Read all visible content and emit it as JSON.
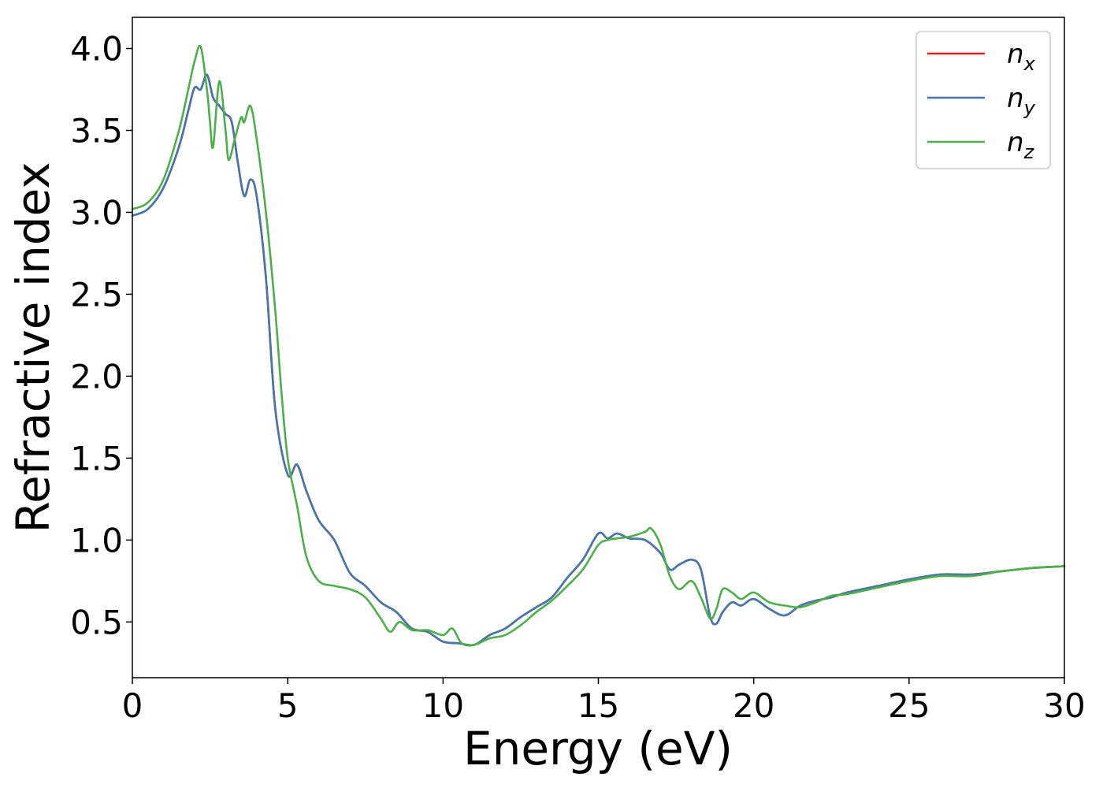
{
  "chart_data": {
    "type": "line",
    "title": "",
    "xlabel": "Energy (eV)",
    "ylabel": "Refractive index",
    "xlim": [
      0,
      30
    ],
    "ylim": [
      0.16,
      4.19
    ],
    "xticks": [
      0,
      5,
      10,
      15,
      20,
      25,
      30
    ],
    "yticks": [
      0.5,
      1.0,
      1.5,
      2.0,
      2.5,
      3.0,
      3.5,
      4.0
    ],
    "xtick_labels": [
      "0",
      "5",
      "10",
      "15",
      "20",
      "25",
      "30"
    ],
    "ytick_labels": [
      "0.5",
      "1.0",
      "1.5",
      "2.0",
      "2.5",
      "3.0",
      "3.5",
      "4.0"
    ],
    "grid": false,
    "legend_position": "top-right",
    "series": [
      {
        "name": "n_x",
        "legend_base": "n",
        "legend_sub": "x",
        "color": "#e41a1c",
        "x": [
          0,
          0.5,
          1.0,
          1.5,
          1.8,
          2.0,
          2.2,
          2.4,
          2.6,
          2.8,
          3.0,
          3.2,
          3.4,
          3.6,
          3.8,
          4.0,
          4.3,
          4.6,
          5.0,
          5.3,
          5.6,
          6.0,
          6.5,
          7.0,
          7.5,
          8.0,
          8.5,
          9.0,
          9.5,
          10.0,
          10.5,
          11.0,
          11.5,
          12.0,
          12.5,
          13.0,
          13.5,
          14.0,
          14.5,
          15.0,
          15.3,
          15.6,
          16.0,
          16.5,
          17.0,
          17.3,
          17.6,
          18.0,
          18.3,
          18.6,
          18.8,
          19.0,
          19.3,
          19.6,
          20.0,
          20.5,
          21.0,
          21.5,
          22.0,
          22.5,
          23.0,
          24.0,
          25.0,
          26.0,
          27.0,
          28.0,
          29.0,
          30.0
        ],
        "values": [
          2.98,
          3.02,
          3.15,
          3.4,
          3.62,
          3.76,
          3.75,
          3.84,
          3.7,
          3.65,
          3.6,
          3.55,
          3.3,
          3.1,
          3.2,
          3.1,
          2.6,
          1.8,
          1.4,
          1.46,
          1.3,
          1.12,
          1.0,
          0.8,
          0.72,
          0.62,
          0.56,
          0.46,
          0.44,
          0.38,
          0.37,
          0.36,
          0.42,
          0.46,
          0.53,
          0.59,
          0.65,
          0.77,
          0.88,
          1.04,
          1.01,
          1.04,
          1.01,
          1.0,
          0.92,
          0.82,
          0.85,
          0.88,
          0.82,
          0.53,
          0.49,
          0.56,
          0.62,
          0.6,
          0.64,
          0.58,
          0.54,
          0.6,
          0.63,
          0.65,
          0.68,
          0.72,
          0.76,
          0.79,
          0.79,
          0.81,
          0.83,
          0.84
        ]
      },
      {
        "name": "n_y",
        "legend_base": "n",
        "legend_sub": "y",
        "color": "#4477aa",
        "x": [
          0,
          0.5,
          1.0,
          1.5,
          1.8,
          2.0,
          2.2,
          2.4,
          2.6,
          2.8,
          3.0,
          3.2,
          3.4,
          3.6,
          3.8,
          4.0,
          4.3,
          4.6,
          5.0,
          5.3,
          5.6,
          6.0,
          6.5,
          7.0,
          7.5,
          8.0,
          8.5,
          9.0,
          9.5,
          10.0,
          10.5,
          11.0,
          11.5,
          12.0,
          12.5,
          13.0,
          13.5,
          14.0,
          14.5,
          15.0,
          15.3,
          15.6,
          16.0,
          16.5,
          17.0,
          17.3,
          17.6,
          18.0,
          18.3,
          18.6,
          18.8,
          19.0,
          19.3,
          19.6,
          20.0,
          20.5,
          21.0,
          21.5,
          22.0,
          22.5,
          23.0,
          24.0,
          25.0,
          26.0,
          27.0,
          28.0,
          29.0,
          30.0
        ],
        "values": [
          2.98,
          3.02,
          3.15,
          3.4,
          3.62,
          3.76,
          3.75,
          3.84,
          3.7,
          3.65,
          3.6,
          3.55,
          3.3,
          3.1,
          3.2,
          3.1,
          2.6,
          1.8,
          1.4,
          1.46,
          1.3,
          1.12,
          1.0,
          0.8,
          0.72,
          0.62,
          0.56,
          0.46,
          0.44,
          0.38,
          0.37,
          0.36,
          0.42,
          0.46,
          0.53,
          0.59,
          0.65,
          0.77,
          0.88,
          1.04,
          1.01,
          1.04,
          1.01,
          1.0,
          0.92,
          0.82,
          0.85,
          0.88,
          0.82,
          0.53,
          0.49,
          0.56,
          0.62,
          0.6,
          0.64,
          0.58,
          0.54,
          0.6,
          0.63,
          0.65,
          0.68,
          0.72,
          0.76,
          0.79,
          0.79,
          0.81,
          0.83,
          0.84
        ]
      },
      {
        "name": "n_z",
        "legend_base": "n",
        "legend_sub": "z",
        "color": "#4daf4a",
        "x": [
          0,
          0.5,
          1.0,
          1.5,
          1.8,
          2.0,
          2.2,
          2.4,
          2.5,
          2.6,
          2.8,
          3.0,
          3.1,
          3.3,
          3.5,
          3.6,
          3.8,
          4.0,
          4.3,
          4.6,
          4.8,
          5.0,
          5.3,
          5.6,
          6.0,
          6.5,
          7.0,
          7.5,
          8.0,
          8.3,
          8.6,
          9.0,
          9.5,
          10.0,
          10.3,
          10.6,
          11.0,
          11.5,
          12.0,
          12.5,
          13.0,
          13.5,
          14.0,
          14.5,
          15.0,
          15.3,
          15.6,
          16.0,
          16.5,
          16.7,
          17.0,
          17.3,
          17.6,
          18.0,
          18.3,
          18.6,
          18.8,
          19.0,
          19.3,
          19.6,
          20.0,
          20.5,
          21.0,
          21.5,
          22.0,
          22.5,
          23.0,
          24.0,
          25.0,
          26.0,
          27.0,
          28.0,
          29.0,
          30.0
        ],
        "values": [
          3.02,
          3.06,
          3.2,
          3.5,
          3.75,
          3.92,
          4.01,
          3.75,
          3.55,
          3.4,
          3.8,
          3.5,
          3.32,
          3.45,
          3.58,
          3.55,
          3.65,
          3.45,
          3.0,
          2.4,
          1.9,
          1.5,
          1.21,
          0.9,
          0.75,
          0.72,
          0.7,
          0.65,
          0.52,
          0.44,
          0.5,
          0.45,
          0.45,
          0.42,
          0.46,
          0.37,
          0.36,
          0.4,
          0.42,
          0.48,
          0.56,
          0.63,
          0.72,
          0.82,
          0.97,
          1.0,
          1.01,
          1.02,
          1.05,
          1.07,
          0.97,
          0.78,
          0.7,
          0.75,
          0.65,
          0.52,
          0.58,
          0.7,
          0.68,
          0.64,
          0.68,
          0.62,
          0.6,
          0.59,
          0.62,
          0.66,
          0.67,
          0.71,
          0.75,
          0.78,
          0.78,
          0.81,
          0.83,
          0.84
        ]
      }
    ]
  }
}
